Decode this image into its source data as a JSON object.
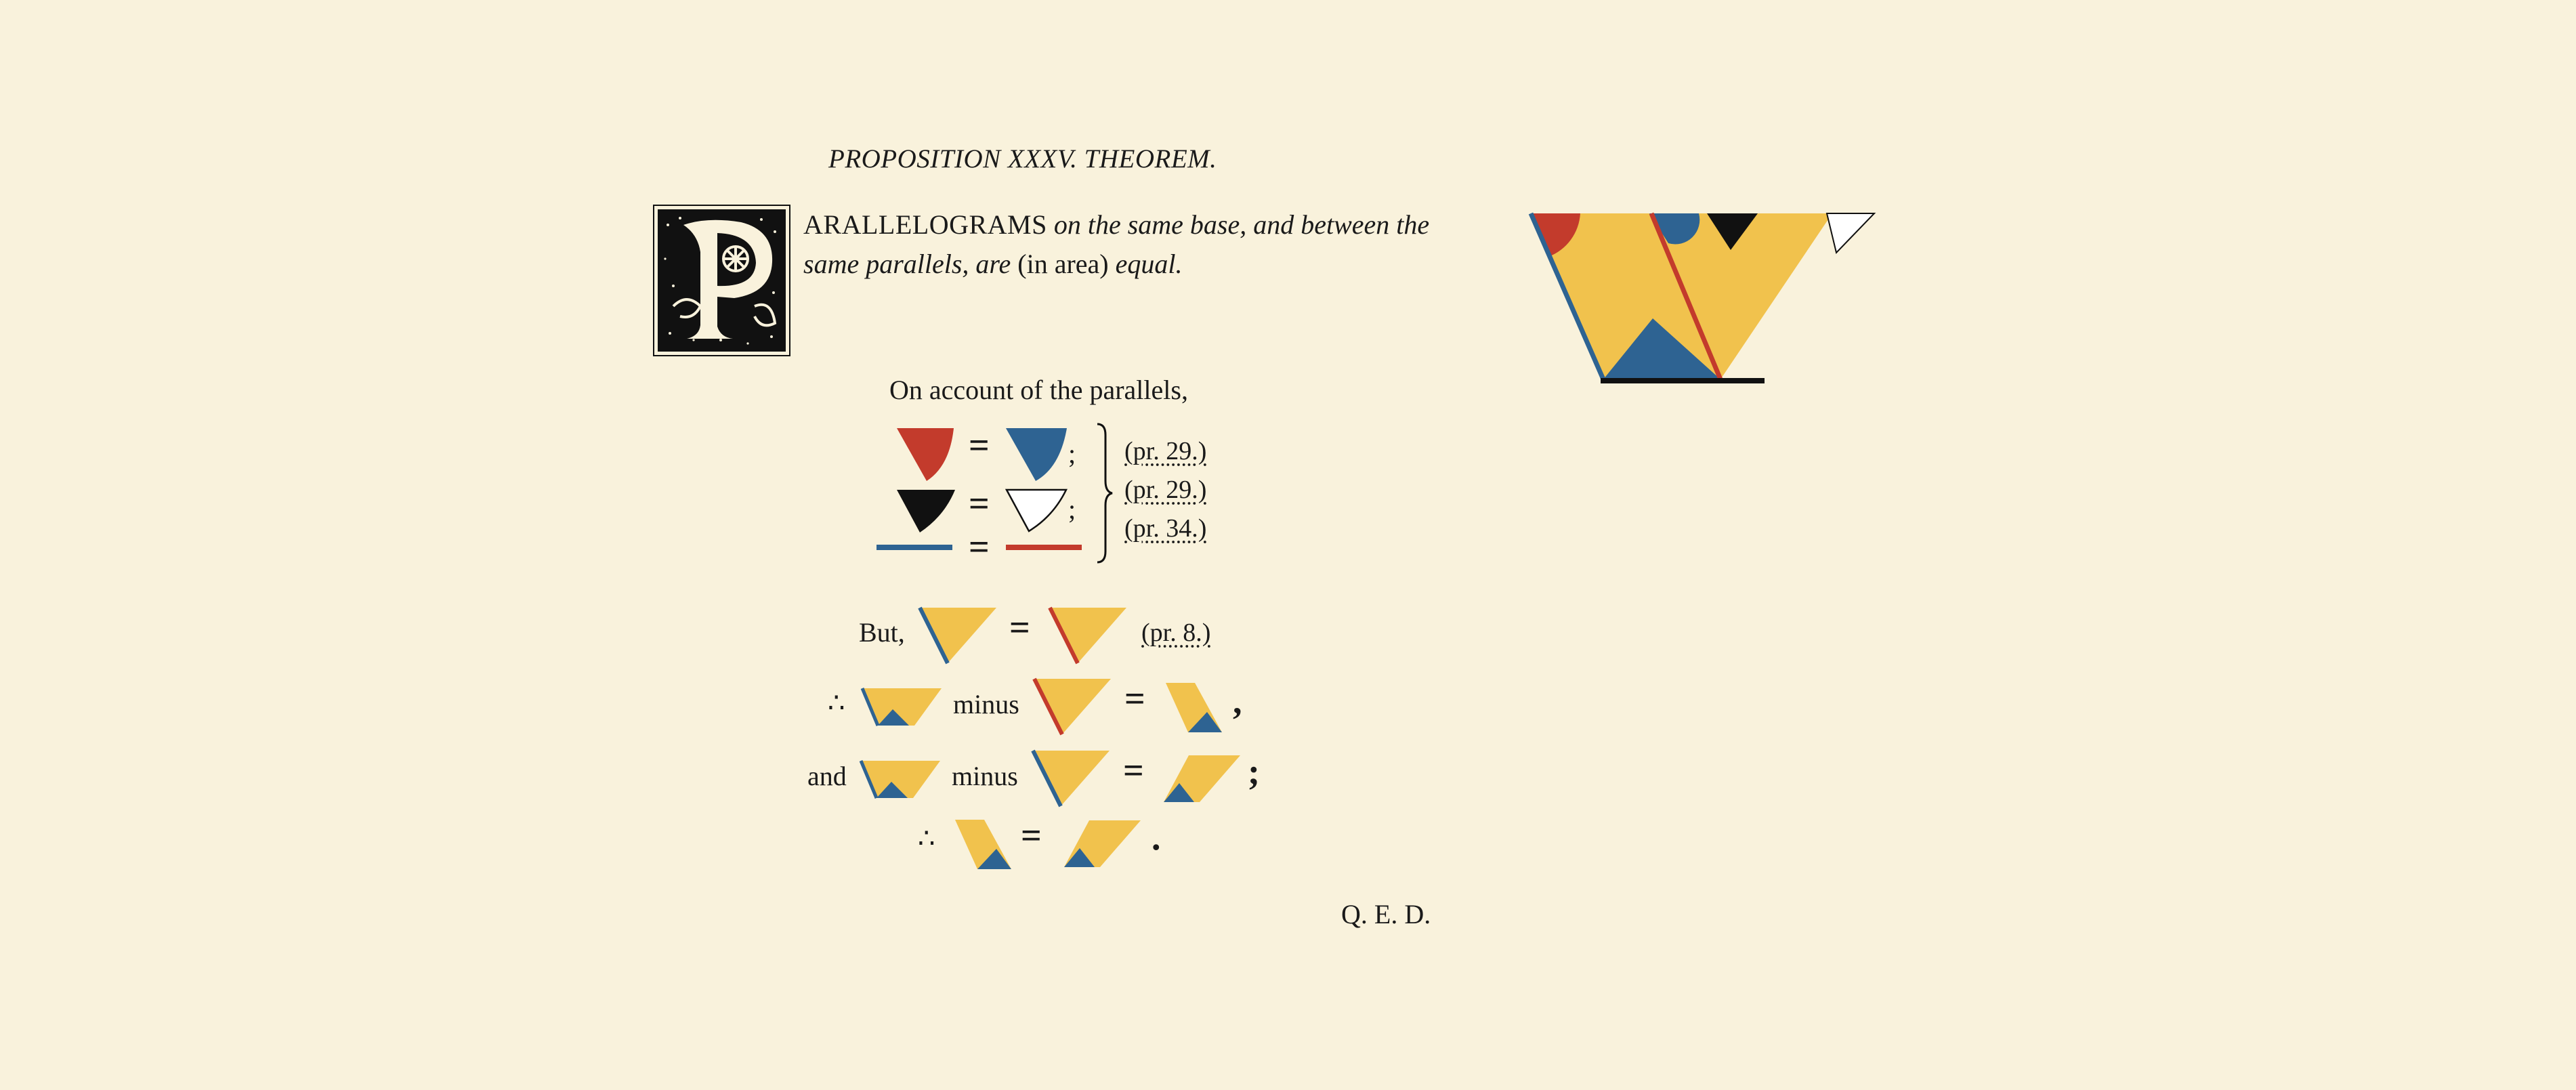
{
  "proposition": {
    "title": "PROPOSITION XXXV. THEOREM.",
    "statement_cap": "ARALLELOGRAMS",
    "statement_rest1": "on the same base, and between the",
    "statement_line2_a": "same parallels, are ",
    "statement_line2_b": "(in area)",
    "statement_line2_c": " equal.",
    "dropcap_letter": "P"
  },
  "proof": {
    "intro": "On account of the parallels,",
    "refs": [
      "(pr. 29.)",
      "(pr. 29.)",
      "(pr. 34.)"
    ],
    "but": "But,",
    "but_ref": "(pr. 8.)",
    "therefore": "∴",
    "and": "and",
    "minus": "minus",
    "equals": "=",
    "semicolon": ";",
    "comma": ",",
    "period": ".",
    "qed": "Q. E. D."
  },
  "colors": {
    "background": "#f9f2dc",
    "red": "#c33b2c",
    "blue": "#2e6392",
    "yellow": "#f1c24d",
    "black": "#111111"
  }
}
